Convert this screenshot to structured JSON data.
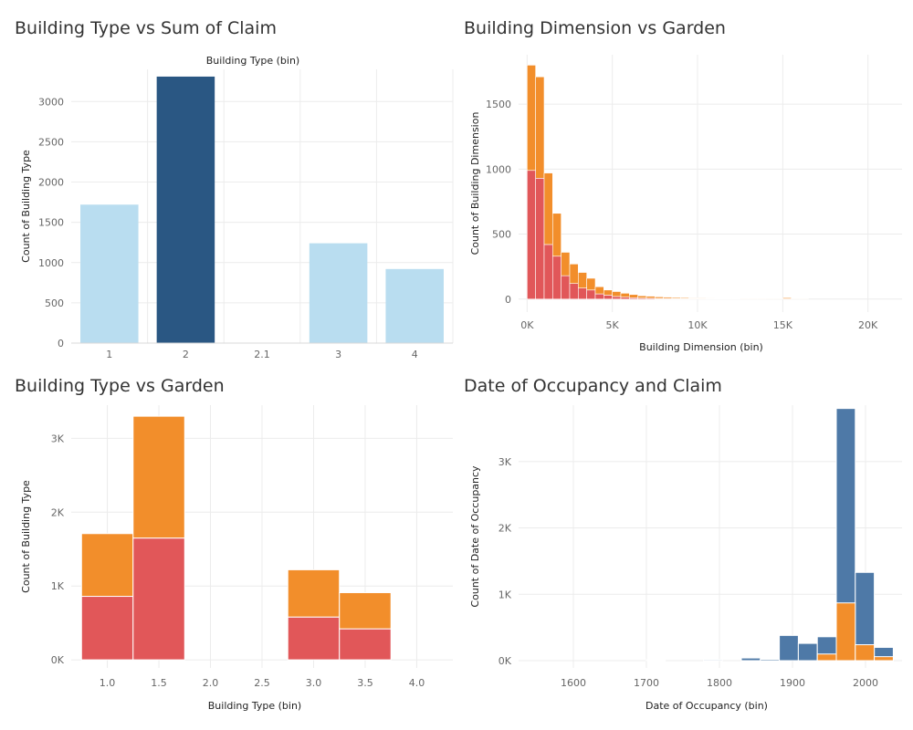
{
  "colors": {
    "light_blue": "#b9ddf0",
    "dark_blue": "#2a5783",
    "orange": "#f28e2b",
    "red": "#e15759",
    "steel_blue": "#4e79a7",
    "grid": "#ececec"
  },
  "chart_data": [
    {
      "id": "c1",
      "type": "bar",
      "title": "Building Type vs Sum of Claim",
      "xlabel": "Building Type (bin)",
      "ylabel": "Count of Building Type",
      "xlabel_position": "top",
      "ylim": [
        0,
        3400
      ],
      "yticks": [
        0,
        500,
        1000,
        1500,
        2000,
        2500,
        3000
      ],
      "ytick_labels": [
        "0",
        "500",
        "1000",
        "1500",
        "2000",
        "2500",
        "3000"
      ],
      "grid": true,
      "categories": [
        "1",
        "2",
        "2.1",
        "3",
        "4"
      ],
      "values": [
        1720,
        3310,
        0,
        1240,
        920
      ],
      "highlighted_category": "2"
    },
    {
      "id": "c2",
      "type": "bar",
      "stacked": true,
      "title": "Building Dimension vs Garden",
      "xlabel": "Building Dimension (bin)",
      "ylabel": "Count of Building Dimension",
      "xlim": [
        -500,
        22000
      ],
      "ylim": [
        -100,
        1880
      ],
      "xticks": [
        0,
        5000,
        10000,
        15000,
        20000
      ],
      "xtick_labels": [
        "0K",
        "5K",
        "10K",
        "15K",
        "20K"
      ],
      "yticks": [
        0,
        500,
        1000,
        1500
      ],
      "ytick_labels": [
        "0",
        "500",
        "1000",
        "1500"
      ],
      "grid": true,
      "bin_width": 500,
      "x": [
        0,
        500,
        1000,
        1500,
        2000,
        2500,
        3000,
        3500,
        4000,
        4500,
        5000,
        5500,
        6000,
        6500,
        7000,
        7500,
        8000,
        8500,
        9000,
        9500,
        10000,
        10500,
        11000,
        11500,
        12000,
        12500,
        13000,
        13500,
        14000,
        14500,
        15000,
        15500,
        16000
      ],
      "series": [
        {
          "color_key": "red",
          "values": [
            990,
            930,
            420,
            330,
            180,
            120,
            85,
            70,
            40,
            30,
            20,
            15,
            10,
            8,
            7,
            5,
            5,
            4,
            3,
            3,
            3,
            2,
            2,
            2,
            2,
            1,
            1,
            1,
            1,
            1,
            2,
            1,
            1
          ]
        },
        {
          "color_key": "orange",
          "values": [
            810,
            780,
            550,
            330,
            180,
            150,
            120,
            90,
            55,
            40,
            38,
            30,
            25,
            17,
            15,
            12,
            10,
            8,
            7,
            5,
            5,
            4,
            3,
            3,
            3,
            2,
            2,
            2,
            1,
            1,
            8,
            1,
            1
          ]
        }
      ]
    },
    {
      "id": "c3",
      "type": "bar",
      "stacked": true,
      "title": "Building Type vs Garden",
      "xlabel": "Building Type (bin)",
      "ylabel": "Count of Building Type",
      "xlim": [
        0.65,
        4.35
      ],
      "ylim": [
        -110,
        3450
      ],
      "xticks": [
        1.0,
        1.5,
        2.0,
        2.5,
        3.0,
        3.5,
        4.0
      ],
      "xtick_labels": [
        "1.0",
        "1.5",
        "2.0",
        "2.5",
        "3.0",
        "3.5",
        "4.0"
      ],
      "yticks": [
        0,
        1000,
        2000,
        3000
      ],
      "ytick_labels": [
        "0K",
        "1K",
        "2K",
        "3K"
      ],
      "grid": true,
      "bins": [
        [
          0.75,
          1.25
        ],
        [
          1.25,
          1.75
        ],
        [
          2.75,
          3.25
        ],
        [
          3.25,
          3.75
        ]
      ],
      "series": [
        {
          "color_key": "red",
          "values": [
            860,
            1650,
            580,
            420
          ]
        },
        {
          "color_key": "orange",
          "values": [
            850,
            1650,
            640,
            490
          ]
        }
      ]
    },
    {
      "id": "c4",
      "type": "bar",
      "overlapping": true,
      "title": "Date of Occupancy and Claim",
      "xlabel": "Date of Occupancy (bin)",
      "ylabel": "Count of Date of Occupancy",
      "xlim": [
        1525,
        2050
      ],
      "ylim": [
        -110,
        3850
      ],
      "xticks": [
        1600,
        1700,
        1800,
        1900,
        2000
      ],
      "xtick_labels": [
        "1600",
        "1700",
        "1800",
        "1900",
        "2000"
      ],
      "yticks": [
        0,
        1000,
        2000,
        3000
      ],
      "ytick_labels": [
        "0K",
        "1K",
        "2K",
        "3K"
      ],
      "grid": true,
      "bin_width": 26,
      "x": [
        1700,
        1778,
        1830,
        1856,
        1882,
        1908,
        1934,
        1960,
        1986,
        2012
      ],
      "series": [
        {
          "color_key": "steel_blue",
          "values": [
            12,
            15,
            40,
            20,
            380,
            260,
            360,
            3800,
            1330,
            200
          ]
        },
        {
          "color_key": "orange",
          "values": [
            0,
            0,
            0,
            0,
            0,
            0,
            100,
            870,
            240,
            60
          ]
        }
      ]
    }
  ]
}
